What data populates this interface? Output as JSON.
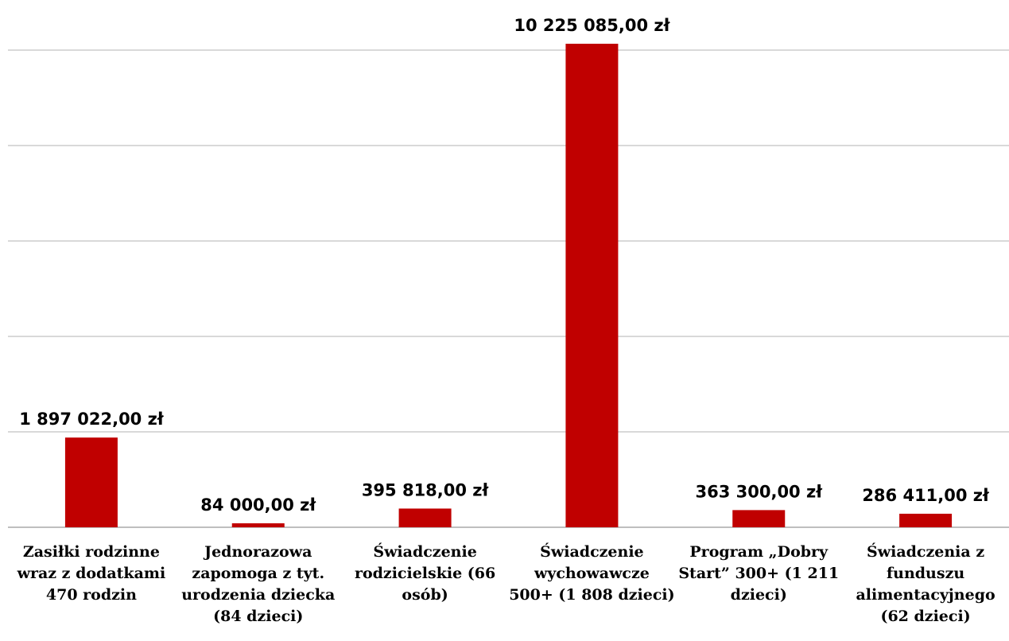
{
  "chart_data": {
    "type": "bar",
    "categories": [
      "Zasiłki rodzinne wraz z dodatkami 470 rodzin",
      "Jednorazowa zapomoga z tyt. urodzenia dziecka (84 dzieci)",
      "Świadczenie rodzicielskie (66 osób)",
      "Świadczenie wychowawcze 500+ (1 808 dzieci)",
      "Program „Dobry Start” 300+ (1 211 dzieci)",
      "Świadczenia z funduszu alimentacyjnego (62 dzieci)"
    ],
    "category_lines": [
      [
        "Zasiłki rodzinne",
        "wraz z dodatkami",
        "470 rodzin"
      ],
      [
        "Jednorazowa",
        "zapomoga z tyt.",
        "urodzenia dziecka",
        "(84 dzieci)"
      ],
      [
        "Świadczenie",
        "rodzicielskie (66",
        "osób)"
      ],
      [
        "Świadczenie",
        "wychowawcze",
        "500+ (1 808 dzieci)"
      ],
      [
        "Program „Dobry",
        "Start” 300+ (1 211",
        "dzieci)"
      ],
      [
        "Świadczenia z",
        "funduszu",
        "alimentacyjnego",
        "(62 dzieci)"
      ]
    ],
    "values": [
      1897022,
      84000,
      395818,
      10225085,
      363300,
      286411
    ],
    "value_labels": [
      "1 897 022,00 zł",
      "84 000,00 zł",
      "395 818,00 zł",
      "10 225 085,00 zł",
      "363 300,00 zł",
      "286 411,00 zł"
    ],
    "title": "",
    "xlabel": "",
    "ylabel": "",
    "ylim": [
      0,
      10225085
    ],
    "grid": true,
    "legend": "none",
    "bar_color": "#c00000",
    "grid_color": "#d9d9d9",
    "axis_color": "#bfbfbf"
  }
}
